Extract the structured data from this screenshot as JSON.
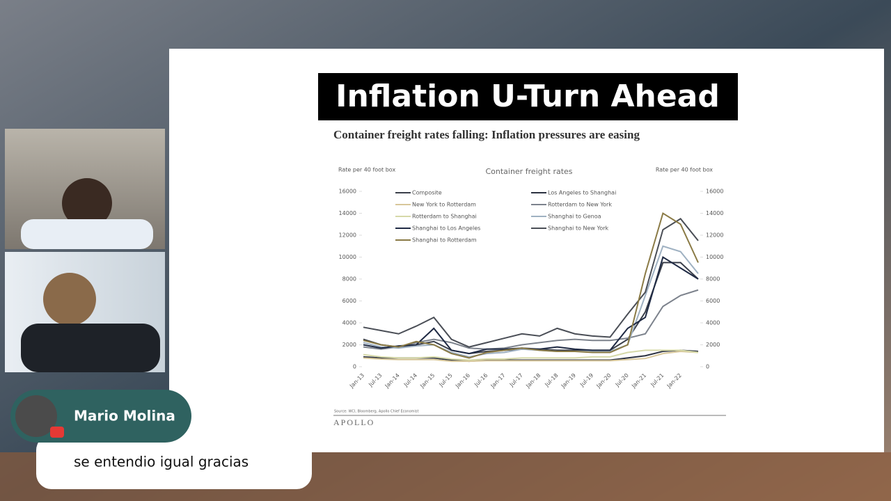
{
  "slide": {
    "title": "Inflation U-Turn Ahead",
    "subtitle": "Container freight rates falling: Inflation pressures are easing",
    "source": "Source: WCI, Bloomberg, Apollo Chief Economist",
    "brand": "APOLLO"
  },
  "chart_data": {
    "type": "line",
    "title": "Container freight rates",
    "ylabel": "Rate per 40 foot box",
    "y2label": "Rate per 40 foot box",
    "categories": [
      "Jan-13",
      "Jul-13",
      "Jan-14",
      "Jul-14",
      "Jan-15",
      "Jul-15",
      "Jan-16",
      "Jul-16",
      "Jan-17",
      "Jul-17",
      "Jan-18",
      "Jul-18",
      "Jan-19",
      "Jul-19",
      "Jan-20",
      "Jul-20",
      "Jan-21",
      "Jul-21",
      "Jan-22",
      null
    ],
    "ylim": [
      0,
      16000
    ],
    "yticks": [
      0,
      2000,
      4000,
      6000,
      8000,
      10000,
      12000,
      14000,
      16000
    ],
    "y2lim": [
      0,
      16000
    ],
    "y2ticks": [
      0,
      2000,
      4000,
      6000,
      8000,
      10000,
      12000,
      14000,
      16000
    ],
    "series": [
      {
        "name": "Composite",
        "color": "#3a3f4a",
        "values": [
          2500,
          2000,
          1800,
          2000,
          2300,
          1500,
          1200,
          1400,
          1500,
          1600,
          1600,
          1500,
          1500,
          1500,
          1500,
          2500,
          5000,
          9500,
          9500,
          8000
        ]
      },
      {
        "name": "Los Angeles to Shanghai",
        "color": "#2b3140",
        "values": [
          900,
          800,
          800,
          800,
          800,
          600,
          500,
          600,
          600,
          600,
          600,
          600,
          600,
          600,
          600,
          800,
          1000,
          1400,
          1500,
          1400
        ]
      },
      {
        "name": "New York to Rotterdam",
        "color": "#d8c79a",
        "values": [
          800,
          700,
          650,
          650,
          650,
          500,
          500,
          550,
          550,
          550,
          550,
          550,
          550,
          550,
          550,
          650,
          750,
          1200,
          1400,
          1300
        ]
      },
      {
        "name": "Rotterdam to New York",
        "color": "#7c828c",
        "values": [
          1800,
          1600,
          1800,
          2200,
          2500,
          2200,
          1700,
          1600,
          1700,
          2000,
          2200,
          2400,
          2500,
          2400,
          2400,
          2600,
          3000,
          5500,
          6500,
          7000
        ]
      },
      {
        "name": "Rotterdam to Shanghai",
        "color": "#d6d9a8",
        "values": [
          1100,
          900,
          800,
          800,
          900,
          700,
          600,
          700,
          700,
          800,
          800,
          800,
          800,
          900,
          900,
          1300,
          1500,
          1500,
          1500,
          1300
        ]
      },
      {
        "name": "Shanghai to Genoa",
        "color": "#9fb1c2",
        "values": [
          2200,
          1800,
          1700,
          1900,
          2000,
          1300,
          900,
          1200,
          1300,
          1600,
          1500,
          1400,
          1400,
          1400,
          1400,
          2000,
          6500,
          11000,
          10500,
          8500
        ]
      },
      {
        "name": "Shanghai to Los Angeles",
        "color": "#1f2a44",
        "values": [
          2000,
          1700,
          1900,
          2000,
          3500,
          1500,
          1200,
          1600,
          1600,
          1700,
          1600,
          1800,
          1600,
          1500,
          1500,
          3500,
          4500,
          10000,
          9000,
          8000
        ]
      },
      {
        "name": "Shanghai to New York",
        "color": "#4a4e56",
        "values": [
          3600,
          3300,
          3000,
          3700,
          4500,
          2500,
          1800,
          2200,
          2600,
          3000,
          2800,
          3500,
          3000,
          2800,
          2700,
          4800,
          6800,
          12500,
          13500,
          11500
        ]
      },
      {
        "name": "Shanghai to Rotterdam",
        "color": "#8a7a45",
        "values": [
          2400,
          2000,
          1800,
          2300,
          2000,
          1200,
          800,
          1300,
          1500,
          1700,
          1500,
          1400,
          1400,
          1300,
          1300,
          2000,
          8500,
          14000,
          13000,
          9500
        ]
      }
    ]
  },
  "chat": {
    "author": "Mario Molina",
    "message": "se entendio igual gracias"
  }
}
